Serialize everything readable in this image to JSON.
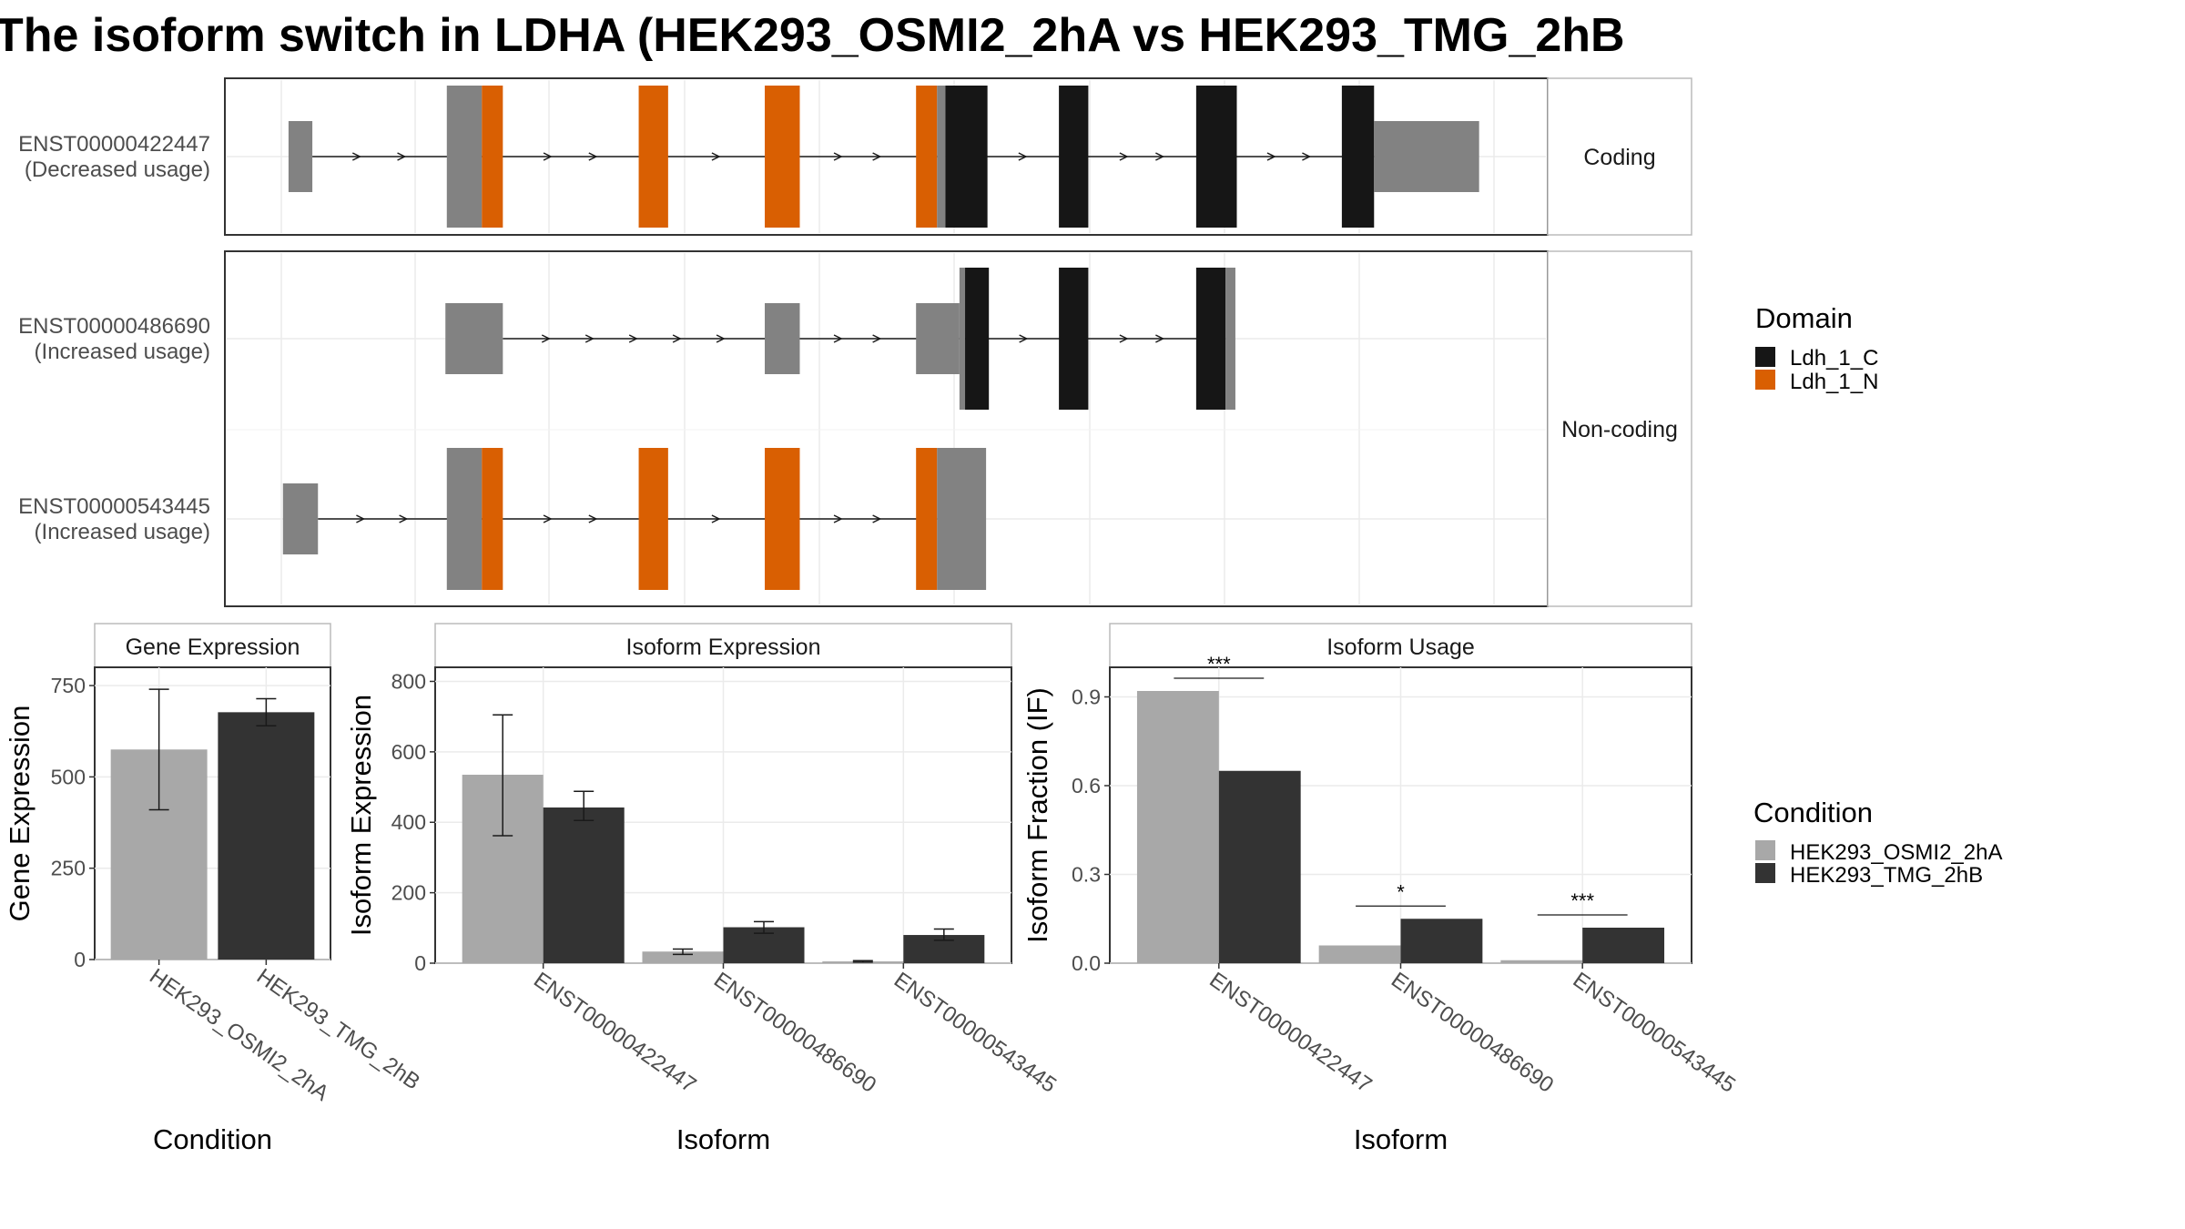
{
  "title": "The isoform switch in LDHA (HEK293_OSMI2_2hA vs HEK293_TMG_2hB",
  "colors": {
    "condition_a": "#a8a8a8",
    "condition_b": "#333333",
    "ldh_1_c": "#161616",
    "ldh_1_n": "#d95f02",
    "exon": "#828282"
  },
  "structure": {
    "facets": [
      "Coding",
      "Non-coding"
    ],
    "isoforms": [
      {
        "id": "ENST00000422447",
        "usage": "(Decreased usage)",
        "facet": "Coding",
        "exons": [
          [
            206,
            223
          ],
          [
            319,
            344
          ],
          [
            344,
            359
          ],
          [
            456,
            477
          ],
          [
            546,
            571
          ],
          [
            654,
            669
          ],
          [
            669,
            675
          ],
          [
            675,
            705
          ],
          [
            756,
            777
          ],
          [
            854,
            883
          ],
          [
            958,
            981
          ],
          [
            981,
            1056
          ]
        ],
        "exon_kinds": [
          "utr",
          "cds",
          "N",
          "N",
          "N",
          "N",
          "cds",
          "C",
          "C",
          "C",
          "C",
          "utr"
        ]
      },
      {
        "id": "ENST00000486690",
        "usage": "(Increased usage)",
        "facet": "Non-coding",
        "exons": [
          [
            318,
            359
          ],
          [
            546,
            571
          ],
          [
            654,
            685
          ],
          [
            685,
            689
          ],
          [
            689,
            706
          ],
          [
            756,
            777
          ],
          [
            854,
            875
          ],
          [
            875,
            882
          ]
        ],
        "exon_kinds": [
          "utr",
          "utr",
          "utr",
          "cds",
          "C",
          "C",
          "C",
          "cds"
        ]
      },
      {
        "id": "ENST00000543445",
        "usage": "(Increased usage)",
        "facet": "Non-coding",
        "exons": [
          [
            202,
            227
          ],
          [
            319,
            344
          ],
          [
            344,
            359
          ],
          [
            456,
            477
          ],
          [
            546,
            571
          ],
          [
            654,
            669
          ],
          [
            669,
            704
          ]
        ],
        "exon_kinds": [
          "utr",
          "cds",
          "N",
          "N",
          "N",
          "N",
          "cds"
        ]
      }
    ],
    "legend_title": "Domain",
    "legend_items": [
      {
        "label": "Ldh_1_C",
        "key": "ldh_1_c"
      },
      {
        "label": "Ldh_1_N",
        "key": "ldh_1_n"
      }
    ]
  },
  "chart_data": [
    {
      "type": "bar",
      "title": "Gene Expression",
      "xlabel": "Condition",
      "ylabel": "Gene Expression",
      "categories": [
        "HEK293_OSMI2_2hA",
        "HEK293_TMG_2hB"
      ],
      "values": [
        575,
        677
      ],
      "error_low": [
        410,
        640
      ],
      "error_high": [
        740,
        714
      ],
      "ylim": [
        0,
        800
      ],
      "yticks": [
        0,
        250,
        500,
        750
      ]
    },
    {
      "type": "bar",
      "title": "Isoform Expression",
      "xlabel": "Isoform",
      "ylabel": "Isoform Expression",
      "categories": [
        "ENST00000422447",
        "ENST00000486690",
        "ENST00000543445"
      ],
      "series": [
        {
          "name": "HEK293_OSMI2_2hA",
          "values": [
            535,
            33,
            5
          ],
          "error_low": [
            362,
            25,
            3
          ],
          "error_high": [
            705,
            40,
            7
          ]
        },
        {
          "name": "HEK293_TMG_2hB",
          "values": [
            442,
            102,
            80
          ],
          "error_low": [
            405,
            85,
            65
          ],
          "error_high": [
            488,
            118,
            97
          ]
        }
      ],
      "ylim": [
        0,
        840
      ],
      "yticks": [
        0,
        200,
        400,
        600,
        800
      ]
    },
    {
      "type": "bar",
      "title": "Isoform Usage",
      "xlabel": "Isoform",
      "ylabel": "Isoform Fraction (IF)",
      "categories": [
        "ENST00000422447",
        "ENST00000486690",
        "ENST00000543445"
      ],
      "series": [
        {
          "name": "HEK293_OSMI2_2hA",
          "values": [
            0.92,
            0.06,
            0.01
          ]
        },
        {
          "name": "HEK293_TMG_2hB",
          "values": [
            0.65,
            0.15,
            0.12
          ]
        }
      ],
      "significance": [
        "***",
        "*",
        "***"
      ],
      "ylim": [
        0,
        1.0
      ],
      "yticks": [
        "0.0",
        "0.3",
        "0.6",
        "0.9"
      ]
    }
  ],
  "condition_legend": {
    "title": "Condition",
    "items": [
      "HEK293_OSMI2_2hA",
      "HEK293_TMG_2hB"
    ]
  }
}
